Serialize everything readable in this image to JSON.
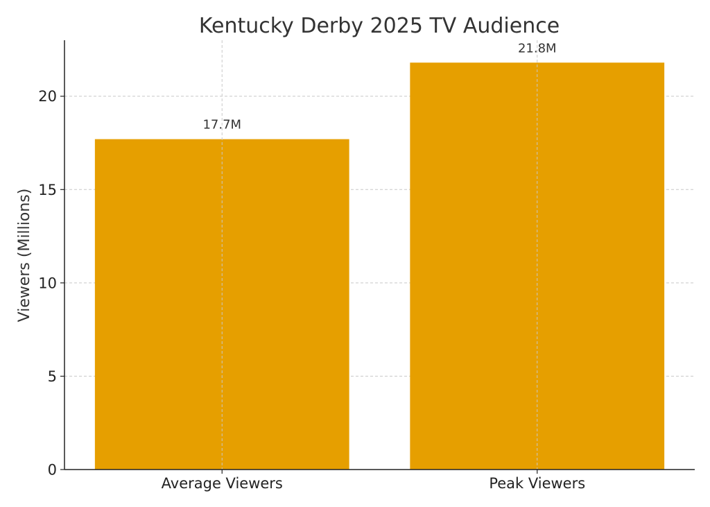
{
  "chart_data": {
    "type": "bar",
    "title": "Kentucky Derby 2025 TV Audience",
    "xlabel": "",
    "ylabel": "Viewers (Millions)",
    "categories": [
      "Average Viewers",
      "Peak Viewers"
    ],
    "values": [
      17.7,
      21.8
    ],
    "data_labels": [
      "17.7M",
      "21.8M"
    ],
    "ylim": [
      0,
      23
    ],
    "yticks": [
      0,
      5,
      10,
      15,
      20
    ],
    "ytick_labels": [
      "0",
      "5",
      "10",
      "15",
      "20"
    ],
    "grid": true,
    "bar_color": "#E69F00"
  }
}
